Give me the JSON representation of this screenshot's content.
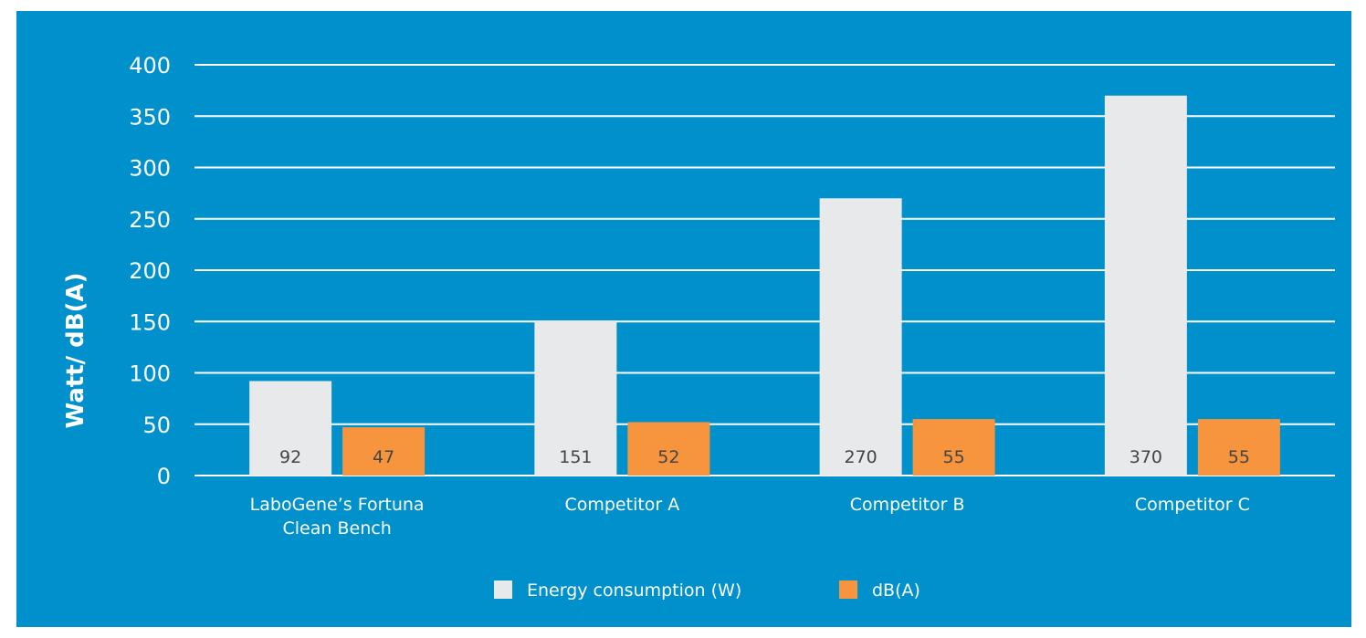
{
  "chart_data": {
    "type": "bar",
    "title": "",
    "xlabel": "",
    "ylabel": "Watt/ dB(A)",
    "ylim": [
      0,
      400
    ],
    "yticks": [
      0,
      50,
      100,
      150,
      200,
      250,
      300,
      350,
      400
    ],
    "grid": true,
    "legend_position": "bottom-center",
    "categories": [
      [
        "LaboGene’s Fortuna",
        "Clean Bench"
      ],
      [
        "Competitor A"
      ],
      [
        "Competitor B"
      ],
      [
        "Competitor C"
      ]
    ],
    "series": [
      {
        "name": "Energy consumption (W)",
        "color": "#e8e9eb",
        "values": [
          92,
          151,
          270,
          370
        ],
        "labels": [
          "92",
          "151",
          "270",
          "370"
        ]
      },
      {
        "name": "dB(A)",
        "color": "#f7953f",
        "values": [
          47,
          52,
          55,
          55
        ],
        "labels": [
          "47",
          "52",
          "55",
          "55"
        ]
      }
    ],
    "colors": {
      "background": "#0091cc",
      "gridline": "#ffffff",
      "text": "#ffffff",
      "data_label_text": "#444444"
    }
  }
}
